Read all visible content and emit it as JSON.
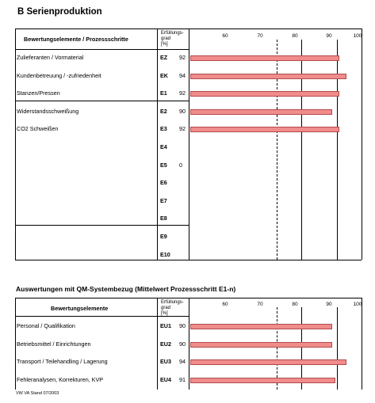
{
  "title": "B Serienproduktion",
  "table1": {
    "header_label": "Bewertungselemente / Prozessschritte",
    "pct_header": [
      "Erfüllungs-",
      "grad",
      "[%]"
    ],
    "ticks": [
      "60",
      "70",
      "80",
      "90",
      "100"
    ],
    "rows": [
      {
        "label": "Zulieferanten / Vormaterial",
        "code": "EZ",
        "value": "92",
        "bar": 92
      },
      {
        "label": "Kundenbetreuung / -zufriedenheit",
        "code": "EK",
        "value": "94",
        "bar": 94
      },
      {
        "label": "Stanzen/Pressen",
        "code": "E1",
        "value": "92",
        "bar": 92
      },
      {
        "label": "Widerstandsschweißung",
        "code": "E2",
        "value": "90",
        "bar": 90
      },
      {
        "label": "CO2 Schweißen",
        "code": "E3",
        "value": "92",
        "bar": 92
      },
      {
        "label": "",
        "code": "E4",
        "value": "",
        "bar": null
      },
      {
        "label": "",
        "code": "E5",
        "value": "0",
        "bar": null
      },
      {
        "label": "",
        "code": "E6",
        "value": "",
        "bar": null
      },
      {
        "label": "",
        "code": "E7",
        "value": "",
        "bar": null
      },
      {
        "label": "",
        "code": "E8",
        "value": "",
        "bar": null
      },
      {
        "label": "",
        "code": "E9",
        "value": "",
        "bar": null
      },
      {
        "label": "",
        "code": "E10",
        "value": "",
        "bar": null
      }
    ]
  },
  "table2": {
    "subtitle": "Auswertungen mit QM-Systembezug (Mittelwert Prozessschritt E1-n)",
    "header_label": "Bewertungselemente",
    "pct_header": [
      "Erfüllungs-",
      "grad",
      "[%]"
    ],
    "ticks": [
      "60",
      "70",
      "80",
      "90",
      "100"
    ],
    "rows": [
      {
        "label": "Personal / Qualifikation",
        "code": "EU1",
        "value": "90",
        "bar": 90
      },
      {
        "label": "Betriebsmittel / Einrichtungen",
        "code": "EU2",
        "value": "90",
        "bar": 90
      },
      {
        "label": "Transport / Teilehandling / Lagerung",
        "code": "EU3",
        "value": "94",
        "bar": 94
      },
      {
        "label": "Fehleranalysen, Korrekturen, KVP",
        "code": "EU4",
        "value": "91",
        "bar": 91
      }
    ]
  },
  "footer": "VW VA Stand 07/2003",
  "colors": {
    "bar_fill": "#f08c8c",
    "bar_border": "#b34a4a"
  }
}
